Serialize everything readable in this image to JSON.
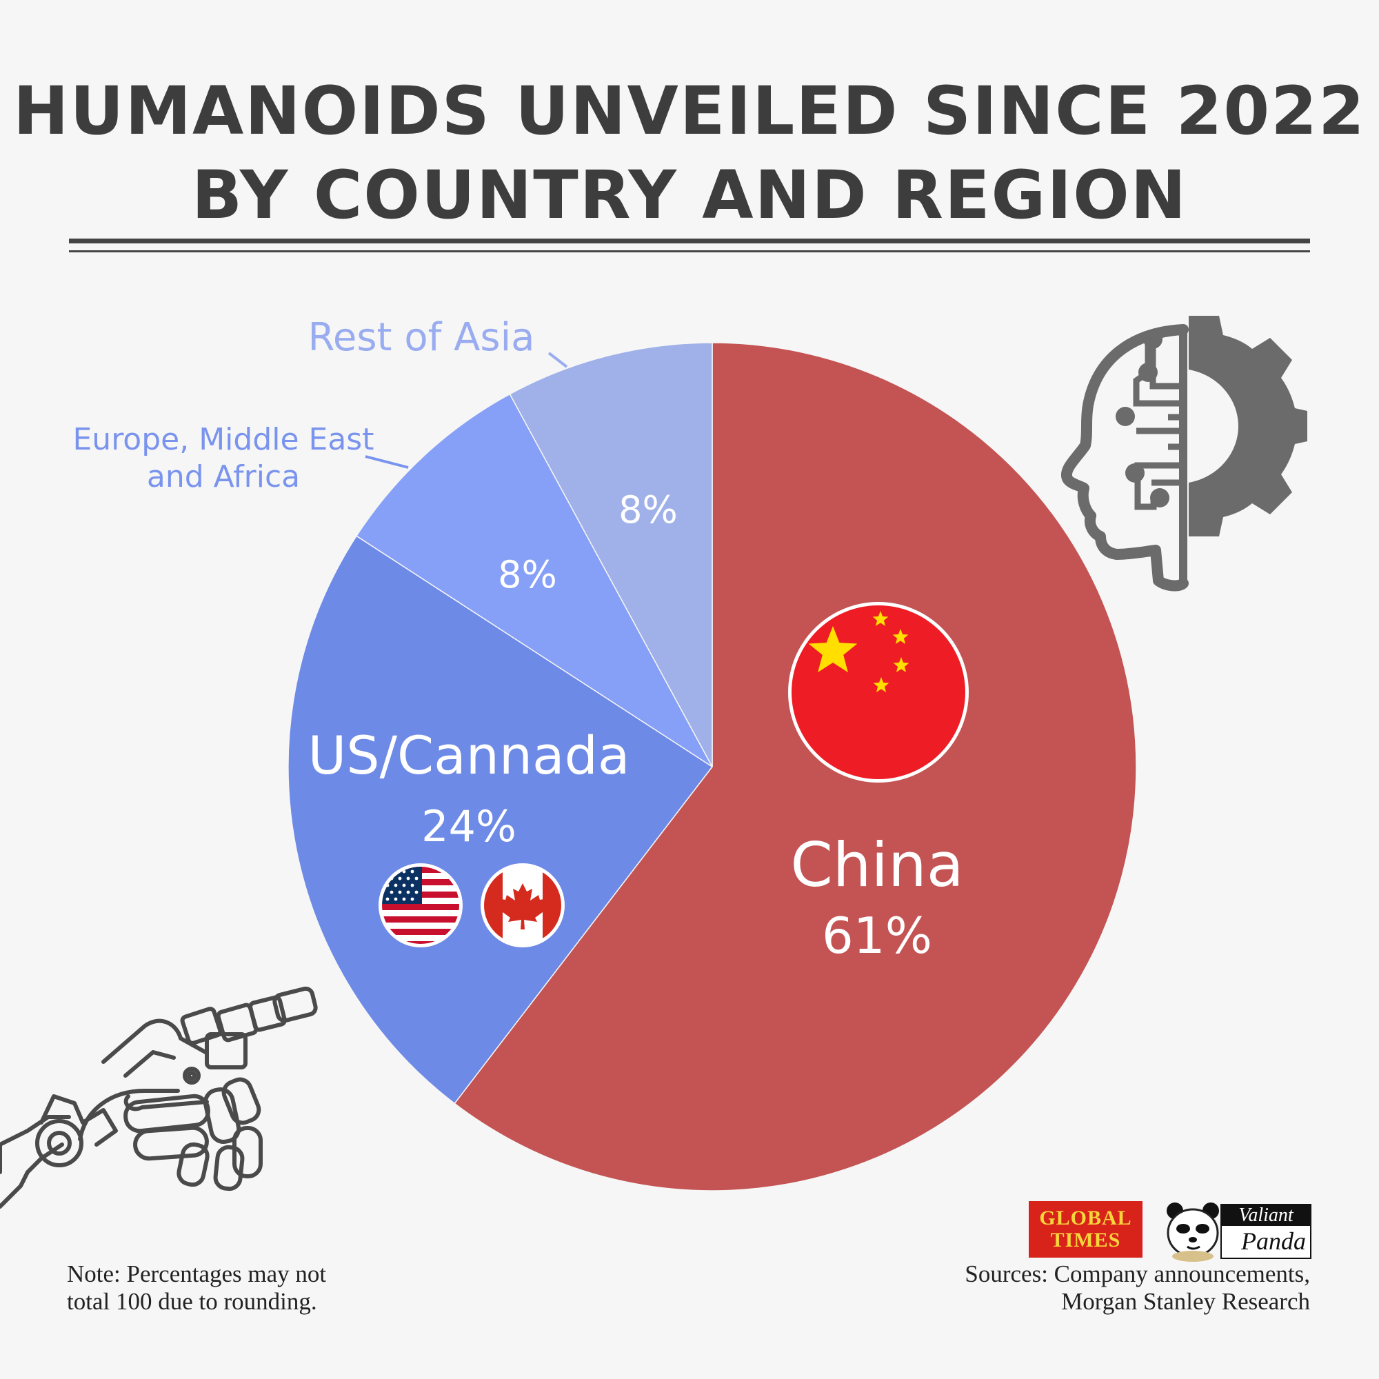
{
  "header": {
    "title_line1": "HUMANOIDS UNVEILED SINCE 2022",
    "title_line2": "BY COUNTRY AND REGION"
  },
  "chart_data": {
    "type": "pie",
    "title": "HUMANOIDS UNVEILED SINCE 2022 BY COUNTRY AND REGION",
    "start_angle_deg": 0,
    "direction": "clockwise",
    "slices": [
      {
        "label": "China",
        "value": 61,
        "value_label": "61%",
        "color": "#c45353"
      },
      {
        "label": "US/Cannada",
        "value": 24,
        "value_label": "24%",
        "color": "#6d8ae6"
      },
      {
        "label": "Europe, Middle East and Africa",
        "value": 8,
        "value_label": "8%",
        "color": "#869ff7"
      },
      {
        "label": "Rest of Asia",
        "value": 8,
        "value_label": "8%",
        "color": "#a0b1ea"
      }
    ]
  },
  "labels": {
    "rest_of_asia": "Rest of Asia",
    "emea_line1": "Europe, Middle East",
    "emea_line2": "and Africa"
  },
  "colors": {
    "label_light_blue": "#9aacf0",
    "label_blue": "#7a94ee",
    "china_flag": "#ee1c25",
    "star_yellow": "#ffde00"
  },
  "icons": {
    "top_right": "head-gear-icon",
    "bottom_left": "robot-hand-icon"
  },
  "footer": {
    "note_line1": "Note: Percentages may not",
    "note_line2": "total 100 due to rounding.",
    "sources_line1": "Sources: Company announcements,",
    "sources_line2": "Morgan Stanley Research",
    "logo_gt_line1": "GLOBAL",
    "logo_gt_line2": "TIMES",
    "logo_vp_line1": "Valiant",
    "logo_vp_line2": "Panda"
  }
}
